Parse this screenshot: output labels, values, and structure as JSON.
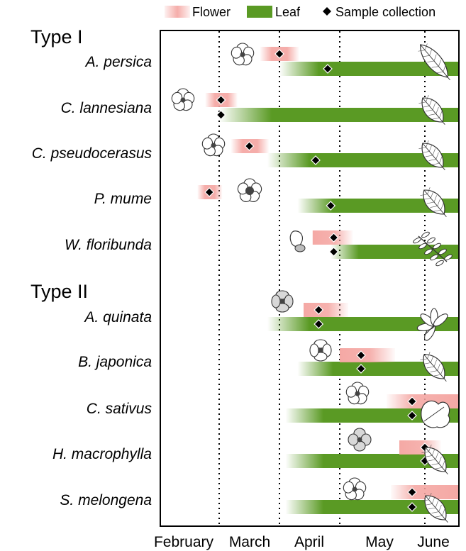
{
  "chart_data": {
    "type": "timeline",
    "title": "",
    "x_axis": {
      "type": "month",
      "ticks": [
        "February",
        "March",
        "April",
        "May",
        "June"
      ],
      "gridlines": "dotted",
      "range": [
        "mid-January",
        "end of June"
      ]
    },
    "legend": {
      "placement": "top-right",
      "items": [
        {
          "key": "flower",
          "label": "Flower",
          "color": "#f4a4a0"
        },
        {
          "key": "leaf",
          "label": "Leaf",
          "color": "#5a9a24"
        },
        {
          "key": "sample",
          "label": "Sample collection",
          "symbol": "diamond",
          "color": "#000000"
        }
      ]
    },
    "groups": [
      {
        "label": "Type I",
        "species": [
          {
            "name": "A. persica",
            "flower": [
              3.68,
              4.32
            ],
            "flower_fade": "both",
            "flower_sample": 4.0,
            "leaf": [
              4.0,
              6.52
            ],
            "leaf_fade_in": true,
            "leaf_sample": 4.8,
            "flower_icon": "blossom",
            "leaf_icon": "lanceolate-leaf"
          },
          {
            "name": "C. lannesiana",
            "flower": [
              2.65,
              3.3
            ],
            "flower_fade": "both",
            "flower_sample": 3.03,
            "leaf": [
              3.0,
              6.52
            ],
            "leaf_fade_in": true,
            "leaf_sample": 3.03,
            "flower_icon": "cherry-blossom",
            "leaf_icon": "serrated-leaf"
          },
          {
            "name": "C. pseudocerasus",
            "flower": [
              3.2,
              3.82
            ],
            "flower_fade": "both",
            "flower_sample": 3.5,
            "leaf": [
              3.8,
              6.52
            ],
            "leaf_fade_in": true,
            "leaf_sample": 4.6,
            "flower_icon": "blossom",
            "leaf_icon": "serrated-leaf"
          },
          {
            "name": "P. mume",
            "flower": [
              2.45,
              3.05
            ],
            "flower_fade": "both",
            "flower_sample": 2.75,
            "leaf": [
              4.3,
              6.52
            ],
            "leaf_fade_in": true,
            "leaf_sample": 4.85,
            "flower_icon": "plum-blossom",
            "leaf_icon": "ovate-leaf"
          },
          {
            "name": "W. floribunda",
            "flower": [
              4.55,
              5.15
            ],
            "flower_fade": "right",
            "flower_sample": 4.9,
            "leaf": [
              4.85,
              6.52
            ],
            "leaf_fade_in": true,
            "leaf_sample": 4.9,
            "flower_icon": "wisteria-bud",
            "leaf_icon": "compound-leaf"
          }
        ]
      },
      {
        "label": "Type II",
        "species": [
          {
            "name": "A. quinata",
            "flower": [
              4.4,
              5.1
            ],
            "flower_fade": "right",
            "flower_sample": 4.65,
            "leaf": [
              3.8,
              6.52
            ],
            "leaf_fade_in": true,
            "leaf_sample": 4.65,
            "flower_icon": "akebia-flower",
            "leaf_icon": "palmate-leaf"
          },
          {
            "name": "B. japonica",
            "flower": [
              5.0,
              5.65
            ],
            "flower_fade": "right",
            "flower_sample": 5.25,
            "leaf": [
              4.3,
              6.52
            ],
            "leaf_fade_in": true,
            "leaf_sample": 5.25,
            "flower_icon": "four-petal-flower",
            "leaf_icon": "serrated-leaf"
          },
          {
            "name": "C. sativus",
            "flower": [
              5.55,
              6.52
            ],
            "flower_fade": "left",
            "flower_sample": 5.85,
            "leaf": [
              4.1,
              6.52
            ],
            "leaf_fade_in": true,
            "leaf_sample": 5.85,
            "flower_icon": "five-petal-flower",
            "leaf_icon": "lobed-leaf"
          },
          {
            "name": "H. macrophylla",
            "flower": [
              5.7,
              6.25
            ],
            "flower_fade": "right",
            "flower_sample": 6.0,
            "leaf": [
              4.1,
              6.52
            ],
            "leaf_fade_in": true,
            "leaf_sample": 6.0,
            "flower_icon": "hydrangea-flower",
            "leaf_icon": "serrated-leaf"
          },
          {
            "name": "S. melongena",
            "flower": [
              5.6,
              6.52
            ],
            "flower_fade": "left",
            "flower_sample": 5.85,
            "leaf": [
              4.1,
              6.52
            ],
            "leaf_fade_in": true,
            "leaf_sample": 5.85,
            "flower_icon": "star-flower",
            "leaf_icon": "ovate-leaf"
          }
        ]
      }
    ]
  }
}
